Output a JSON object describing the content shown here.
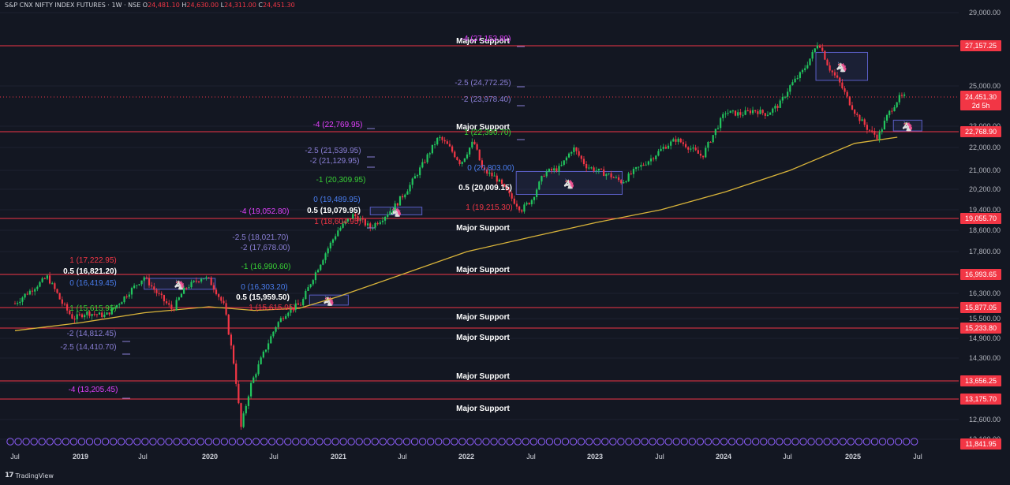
{
  "header": {
    "title": "S&P CNX NIFTY INDEX FUTURES · 1W · NSE",
    "o_label": "O",
    "o_value": "24,481.10",
    "h_label": "H",
    "h_value": "24,630.00",
    "l_label": "L",
    "l_value": "24,311.00",
    "c_label": "C",
    "c_value": "24,451.30"
  },
  "footer": {
    "brand": "TradingView"
  },
  "colors": {
    "background": "#131722",
    "up": "#22c55e",
    "down": "#f23645",
    "ema": "#d9b43a",
    "support_line": "#f23645",
    "fib_magenta": "#e040fb",
    "fib_blue": "#4a7ef0",
    "fib_purple": "#8a7fd6",
    "fib_green": "#38d135",
    "fib_red": "#f23645",
    "box": "#5b5fc7"
  },
  "chart_data": {
    "type": "candlestick",
    "symbol": "S&P CNX NIFTY INDEX FUTURES",
    "interval": "1W",
    "exchange": "NSE",
    "y_axis_ticks": [
      "29,000.00",
      "25,000.00",
      "23,000.00",
      "22,000.00",
      "21,000.00",
      "20,200.00",
      "19,400.00",
      "18,600.00",
      "17,800.00",
      "17,000.00",
      "16,300.00",
      "15,500.00",
      "14,900.00",
      "14,300.00",
      "13,600.00",
      "12,600.00",
      "12,100.00"
    ],
    "x_axis_ticks": [
      "Jul",
      "2019",
      "Jul",
      "2020",
      "Jul",
      "2021",
      "Jul",
      "2022",
      "Jul",
      "2023",
      "Jul",
      "2024",
      "Jul",
      "2025",
      "Jul"
    ],
    "support_lines": [
      {
        "value": 27157.25,
        "label": "27,157.25"
      },
      {
        "value": 22768.9,
        "label": "22,768.90"
      },
      {
        "value": 19055.7,
        "label": "19,055.70"
      },
      {
        "value": 16993.65,
        "label": "16,993.65"
      },
      {
        "value": 15877.05,
        "label": "15,877.05"
      },
      {
        "value": 15233.8,
        "label": "15,233.80"
      },
      {
        "value": 13656.25,
        "label": "13,656.25"
      },
      {
        "value": 13175.7,
        "label": "13,175.70"
      }
    ],
    "support_label": "Major Support",
    "current_price": {
      "value": 24451.3,
      "label": "24,451.30",
      "countdown": "2d 5h"
    },
    "bottom_price_label": "11,841.95",
    "fib_labels": [
      {
        "text": "-4 (27,153.80)",
        "color": "magenta"
      },
      {
        "text": "-2.5 (24,772.25)",
        "color": "purple"
      },
      {
        "text": "-2 (23,978.40)",
        "color": "purple"
      },
      {
        "text": "-4 (22,769.95)",
        "color": "magenta"
      },
      {
        "text": "1 (22,390.70)",
        "color": "green"
      },
      {
        "text": "-2.5 (21,539.95)",
        "color": "purple"
      },
      {
        "text": "-2 (21,129.95)",
        "color": "purple"
      },
      {
        "text": "0 (20,803.00)",
        "color": "blue"
      },
      {
        "text": "-1 (20,309.95)",
        "color": "green"
      },
      {
        "text": "0.5 (20,009.15)",
        "color": "white"
      },
      {
        "text": "0 (19,489.95)",
        "color": "blue"
      },
      {
        "text": "1 (19,215.30)",
        "color": "red"
      },
      {
        "text": "-4 (19,052.80)",
        "color": "magenta"
      },
      {
        "text": "0.5 (19,079.95)",
        "color": "white"
      },
      {
        "text": "1 (18,604.95)",
        "color": "red"
      },
      {
        "text": "-2.5 (18,021.70)",
        "color": "purple"
      },
      {
        "text": "-2 (17,678.00)",
        "color": "purple"
      },
      {
        "text": "1 (17,222.95)",
        "color": "red"
      },
      {
        "text": "-1 (16,990.60)",
        "color": "green"
      },
      {
        "text": "0.5 (16,821.20)",
        "color": "white"
      },
      {
        "text": "0 (16,419.45)",
        "color": "blue"
      },
      {
        "text": "0 (16,303.20)",
        "color": "blue"
      },
      {
        "text": "0.5 (15,959.50)",
        "color": "white"
      },
      {
        "text": "1 (15,615.95)",
        "color": "green"
      },
      {
        "text": "1 (15,615.95)",
        "color": "red"
      },
      {
        "text": "-2 (14,812.45)",
        "color": "purple"
      },
      {
        "text": "-2.5 (14,410.70)",
        "color": "purple"
      },
      {
        "text": "-4 (13,205.45)",
        "color": "magenta"
      }
    ],
    "price_path": [
      [
        2018.5,
        16000
      ],
      [
        2018.62,
        16400
      ],
      [
        2018.75,
        16900
      ],
      [
        2018.85,
        16100
      ],
      [
        2018.95,
        15500
      ],
      [
        2019.05,
        15700
      ],
      [
        2019.2,
        15600
      ],
      [
        2019.35,
        16200
      ],
      [
        2019.5,
        16900
      ],
      [
        2019.6,
        16300
      ],
      [
        2019.72,
        15800
      ],
      [
        2019.82,
        16500
      ],
      [
        2019.95,
        16900
      ],
      [
        2020.0,
        16800
      ],
      [
        2020.12,
        15900
      ],
      [
        2020.2,
        14000
      ],
      [
        2020.25,
        12400
      ],
      [
        2020.32,
        13500
      ],
      [
        2020.42,
        14400
      ],
      [
        2020.52,
        15300
      ],
      [
        2020.62,
        15800
      ],
      [
        2020.72,
        16000
      ],
      [
        2020.82,
        17000
      ],
      [
        2020.92,
        17900
      ],
      [
        2021.0,
        18600
      ],
      [
        2021.12,
        19200
      ],
      [
        2021.25,
        18700
      ],
      [
        2021.35,
        19100
      ],
      [
        2021.45,
        19600
      ],
      [
        2021.55,
        20300
      ],
      [
        2021.65,
        21200
      ],
      [
        2021.78,
        22500
      ],
      [
        2021.85,
        22100
      ],
      [
        2021.95,
        21300
      ],
      [
        2022.05,
        22300
      ],
      [
        2022.12,
        21000
      ],
      [
        2022.22,
        20700
      ],
      [
        2022.32,
        20000
      ],
      [
        2022.42,
        19400
      ],
      [
        2022.5,
        19800
      ],
      [
        2022.6,
        20900
      ],
      [
        2022.72,
        21100
      ],
      [
        2022.82,
        22000
      ],
      [
        2022.92,
        21200
      ],
      [
        2023.0,
        21000
      ],
      [
        2023.1,
        20800
      ],
      [
        2023.2,
        20500
      ],
      [
        2023.3,
        21000
      ],
      [
        2023.42,
        21500
      ],
      [
        2023.52,
        22000
      ],
      [
        2023.62,
        22400
      ],
      [
        2023.72,
        22000
      ],
      [
        2023.82,
        21600
      ],
      [
        2023.92,
        22800
      ],
      [
        2024.0,
        23700
      ],
      [
        2024.12,
        23600
      ],
      [
        2024.22,
        23800
      ],
      [
        2024.32,
        23600
      ],
      [
        2024.42,
        24100
      ],
      [
        2024.5,
        25000
      ],
      [
        2024.6,
        25800
      ],
      [
        2024.68,
        26800
      ],
      [
        2024.72,
        27400
      ],
      [
        2024.8,
        26000
      ],
      [
        2024.88,
        25200
      ],
      [
        2024.95,
        24300
      ],
      [
        2025.02,
        23500
      ],
      [
        2025.1,
        22900
      ],
      [
        2025.18,
        22500
      ],
      [
        2025.26,
        23600
      ],
      [
        2025.34,
        24400
      ],
      [
        2025.38,
        24451
      ]
    ],
    "ema_path": [
      [
        2018.5,
        15150
      ],
      [
        2019.0,
        15380
      ],
      [
        2019.5,
        15700
      ],
      [
        2020.0,
        15900
      ],
      [
        2020.35,
        15780
      ],
      [
        2020.7,
        15850
      ],
      [
        2021.0,
        16200
      ],
      [
        2021.5,
        17000
      ],
      [
        2022.0,
        17800
      ],
      [
        2022.5,
        18350
      ],
      [
        2023.0,
        18900
      ],
      [
        2023.5,
        19400
      ],
      [
        2024.0,
        20100
      ],
      [
        2024.5,
        21000
      ],
      [
        2025.0,
        22200
      ],
      [
        2025.33,
        22500
      ]
    ],
    "demand_boxes": [
      {
        "x0": 2019.5,
        "x1": 2020.05,
        "y0": 16450,
        "y1": 16850
      },
      {
        "x0": 2020.78,
        "x1": 2021.08,
        "y0": 15950,
        "y1": 16250
      },
      {
        "x0": 2021.25,
        "x1": 2021.65,
        "y0": 19200,
        "y1": 19500
      },
      {
        "x0": 2022.38,
        "x1": 2023.2,
        "y0": 20000,
        "y1": 20950
      },
      {
        "x0": 2024.7,
        "x1": 2025.1,
        "y0": 25300,
        "y1": 26800
      },
      {
        "x0": 2025.3,
        "x1": 2025.52,
        "y0": 22800,
        "y1": 23300
      }
    ]
  }
}
